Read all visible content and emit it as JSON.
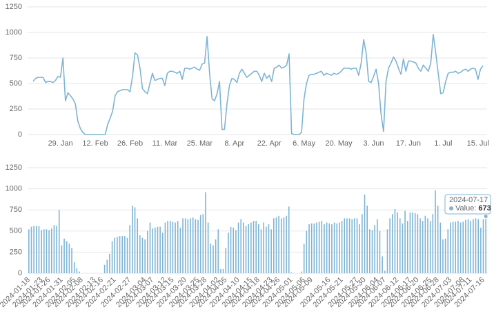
{
  "chart_data": [
    {
      "type": "line",
      "color": "#7db4d4",
      "ylim": [
        0,
        1250
      ],
      "yticks": [
        0,
        250,
        500,
        750,
        1000,
        1250
      ],
      "grid": true,
      "categories": [
        null,
        null,
        null,
        null,
        null,
        null,
        null,
        null,
        null,
        null,
        null,
        "29. Jan",
        null,
        null,
        null,
        null,
        null,
        null,
        null,
        null,
        null,
        null,
        null,
        null,
        null,
        "12. Feb",
        null,
        null,
        null,
        null,
        null,
        null,
        null,
        null,
        null,
        null,
        null,
        null,
        null,
        "26. Feb",
        null,
        null,
        null,
        null,
        null,
        null,
        null,
        null,
        null,
        null,
        null,
        null,
        null,
        "11. Mar",
        null,
        null,
        null,
        null,
        null,
        null,
        null,
        null,
        null,
        null,
        null,
        null,
        null,
        "25. Mar",
        null,
        null,
        null,
        null,
        null,
        null,
        null,
        null,
        null,
        null,
        null,
        null,
        null,
        "8. Apr",
        null,
        null,
        null,
        null,
        null,
        null,
        null,
        null,
        null,
        null,
        null,
        null,
        null,
        "22. Apr",
        null,
        null,
        null,
        null,
        null,
        null,
        null,
        null,
        null,
        null,
        null,
        null,
        null,
        "6. May",
        null,
        null,
        null,
        null,
        null,
        null,
        null,
        null,
        null,
        null,
        null,
        null,
        null,
        "20. May",
        null,
        null,
        null,
        null,
        null,
        null,
        null,
        null,
        null,
        null,
        null,
        null,
        null,
        "3. Jun",
        null,
        null,
        null,
        null,
        null,
        null,
        null,
        null,
        null,
        null,
        null,
        null,
        null,
        "17. Jun",
        null,
        null,
        null,
        null,
        null,
        null,
        null,
        null,
        null,
        null,
        null,
        null,
        null,
        "1. Jul",
        null,
        null,
        null,
        null,
        null,
        null,
        null,
        null,
        null,
        null,
        null,
        null,
        null,
        "15. Jul",
        null,
        null
      ],
      "values": [
        520,
        550,
        560,
        560,
        560,
        510,
        520,
        520,
        510,
        530,
        570,
        560,
        750,
        330,
        410,
        380,
        350,
        300,
        130,
        60,
        20,
        0,
        0,
        0,
        0,
        0,
        0,
        0,
        0,
        0,
        100,
        160,
        230,
        380,
        420,
        430,
        440,
        440,
        440,
        420,
        570,
        800,
        780,
        650,
        450,
        420,
        400,
        500,
        600,
        530,
        540,
        550,
        550,
        480,
        600,
        620,
        620,
        610,
        600,
        620,
        540,
        650,
        650,
        640,
        650,
        660,
        640,
        630,
        690,
        700,
        960,
        600,
        350,
        330,
        400,
        520,
        50,
        50,
        300,
        480,
        550,
        540,
        510,
        600,
        640,
        600,
        560,
        580,
        600,
        620,
        620,
        580,
        520,
        600,
        550,
        580,
        520,
        650,
        660,
        680,
        650,
        660,
        680,
        790,
        10,
        0,
        0,
        0,
        20,
        350,
        500,
        580,
        590,
        590,
        600,
        610,
        620,
        580,
        600,
        590,
        580,
        600,
        590,
        600,
        620,
        650,
        650,
        650,
        640,
        650,
        650,
        580,
        700,
        930,
        800,
        520,
        510,
        570,
        640,
        500,
        200,
        30,
        520,
        650,
        700,
        760,
        720,
        650,
        590,
        740,
        620,
        720,
        720,
        710,
        700,
        650,
        620,
        680,
        650,
        620,
        700,
        980,
        800,
        600,
        400,
        410,
        520,
        600,
        610,
        610,
        620,
        600,
        610,
        630,
        640,
        620,
        640,
        650,
        640,
        540,
        640,
        673
      ]
    },
    {
      "type": "bar",
      "color": "#7db4d4",
      "ylim": [
        0,
        1250
      ],
      "yticks": [
        0,
        250,
        500,
        750,
        1000,
        1250
      ],
      "grid": true,
      "categories": [
        "2024-01-18",
        null,
        null,
        null,
        null,
        "2024-01-23",
        null,
        null,
        "2024-01-26",
        null,
        null,
        null,
        null,
        "2024-01-31",
        null,
        null,
        null,
        null,
        "2024-02-05",
        null,
        null,
        "2024-02-08",
        null,
        null,
        null,
        null,
        "2024-02-13",
        null,
        null,
        "2024-02-16",
        null,
        null,
        null,
        null,
        "2024-02-21",
        null,
        null,
        null,
        null,
        null,
        "2024-02-27",
        null,
        null,
        null,
        null,
        null,
        "2024-03-04",
        null,
        null,
        "2024-03-07",
        null,
        null,
        null,
        null,
        "2024-03-12",
        null,
        null,
        "2024-03-15",
        null,
        null,
        null,
        null,
        "2024-03-20",
        null,
        null,
        null,
        null,
        "2024-03-25",
        null,
        null,
        "2024-03-28",
        null,
        null,
        null,
        null,
        "2024-04-02",
        null,
        null,
        "2024-04-05",
        null,
        null,
        null,
        null,
        "2024-04-10",
        null,
        null,
        null,
        null,
        "2024-04-15",
        null,
        null,
        "2024-04-18",
        null,
        null,
        null,
        null,
        "2024-04-23",
        null,
        null,
        "2024-04-26",
        null,
        null,
        null,
        null,
        "2024-05-01",
        null,
        null,
        null,
        null,
        "2024-05-06",
        null,
        null,
        "2024-05-09",
        null,
        null,
        null,
        null,
        null,
        null,
        "2024-05-16",
        null,
        null,
        null,
        null,
        "2024-05-21",
        null,
        null,
        null,
        null,
        null,
        "2024-05-27",
        null,
        null,
        "2024-05-30",
        null,
        null,
        null,
        null,
        "2024-06-04",
        null,
        null,
        "2024-06-07",
        null,
        null,
        null,
        null,
        "2024-06-12",
        null,
        null,
        null,
        null,
        "2024-06-17",
        null,
        null,
        "2024-06-20",
        null,
        null,
        null,
        null,
        "2024-06-25",
        null,
        null,
        "2024-06-28",
        null,
        null,
        null,
        null,
        "2024-07-03",
        null,
        null,
        null,
        null,
        "2024-07-08",
        null,
        null,
        "2024-07-11",
        null,
        null,
        null,
        null,
        "2024-07-16",
        null
      ],
      "values": [
        520,
        550,
        560,
        560,
        560,
        510,
        520,
        520,
        510,
        530,
        570,
        560,
        750,
        330,
        410,
        380,
        350,
        300,
        130,
        60,
        20,
        0,
        0,
        0,
        0,
        0,
        0,
        0,
        0,
        0,
        100,
        160,
        230,
        380,
        420,
        430,
        440,
        440,
        440,
        420,
        570,
        800,
        780,
        650,
        450,
        420,
        400,
        500,
        600,
        530,
        540,
        550,
        550,
        480,
        600,
        620,
        620,
        610,
        600,
        620,
        540,
        650,
        650,
        640,
        650,
        660,
        640,
        630,
        690,
        700,
        960,
        600,
        350,
        330,
        400,
        520,
        50,
        50,
        300,
        480,
        550,
        540,
        510,
        600,
        640,
        600,
        560,
        580,
        600,
        620,
        620,
        580,
        520,
        600,
        550,
        580,
        520,
        650,
        660,
        680,
        650,
        660,
        680,
        790,
        10,
        0,
        0,
        0,
        20,
        350,
        500,
        580,
        590,
        590,
        600,
        610,
        620,
        580,
        600,
        590,
        580,
        600,
        590,
        600,
        620,
        650,
        650,
        650,
        640,
        650,
        650,
        580,
        700,
        930,
        800,
        520,
        510,
        570,
        640,
        500,
        200,
        30,
        520,
        650,
        700,
        760,
        720,
        650,
        590,
        740,
        620,
        720,
        720,
        710,
        700,
        650,
        620,
        680,
        650,
        620,
        700,
        980,
        800,
        600,
        400,
        410,
        520,
        600,
        610,
        610,
        620,
        600,
        610,
        630,
        640,
        620,
        640,
        650,
        640,
        540,
        640,
        673
      ],
      "tooltip": {
        "title": "2024-07-17",
        "label": "Value:",
        "value": 673
      }
    }
  ]
}
